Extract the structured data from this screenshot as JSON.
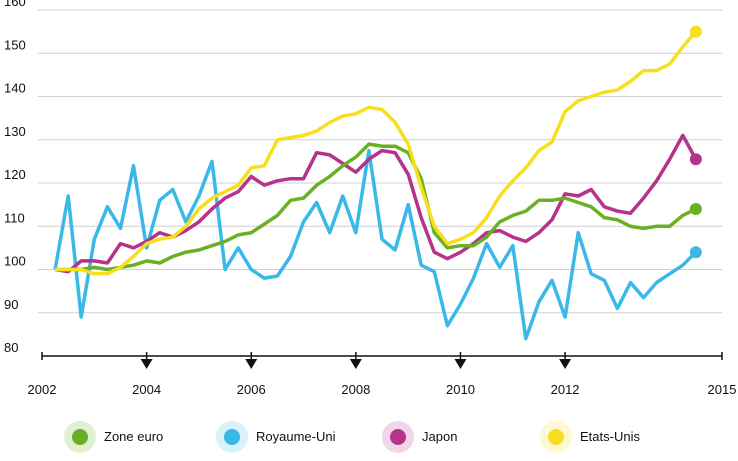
{
  "chart_data": {
    "type": "line",
    "x": [
      2002.25,
      2002.5,
      2002.75,
      2003,
      2003.25,
      2003.5,
      2003.75,
      2004,
      2004.25,
      2004.5,
      2004.75,
      2005,
      2005.25,
      2005.5,
      2005.75,
      2006,
      2006.25,
      2006.5,
      2006.75,
      2007,
      2007.25,
      2007.5,
      2007.75,
      2008,
      2008.25,
      2008.5,
      2008.75,
      2009,
      2009.25,
      2009.5,
      2009.75,
      2010,
      2010.25,
      2010.5,
      2010.75,
      2011,
      2011.25,
      2011.5,
      2011.75,
      2012,
      2012.25,
      2012.5,
      2012.75,
      2013,
      2013.25,
      2013.5,
      2013.75,
      2014,
      2014.25,
      2014.5
    ],
    "series": [
      {
        "name": "Zone euro",
        "color": "#6ab023",
        "values": [
          100,
          100,
          100,
          100.5,
          100,
          100.5,
          101,
          102,
          101.5,
          103,
          104,
          104.5,
          105.5,
          106.5,
          108,
          108.5,
          110.5,
          112.5,
          116,
          116.5,
          119.5,
          121.5,
          124,
          126,
          129,
          128.5,
          128.5,
          127,
          121,
          108.5,
          105,
          105.5,
          105.5,
          107.5,
          111,
          112.5,
          113.5,
          116,
          116,
          116.5,
          115.5,
          114.5,
          112,
          111.5,
          110,
          109.5,
          110,
          110,
          112.5,
          114
        ]
      },
      {
        "name": "Royaume-Uni",
        "color": "#3ab8e8",
        "values": [
          100,
          117,
          89,
          107,
          114.5,
          109.5,
          124,
          105,
          116,
          118.5,
          111,
          117,
          125,
          100,
          105,
          100,
          98,
          98.5,
          103,
          111,
          115.5,
          108.5,
          117,
          108.5,
          127.5,
          107,
          104.5,
          115,
          101,
          99.5,
          87,
          92,
          98,
          106,
          100.5,
          105.5,
          84,
          92.5,
          97.5,
          89,
          108.5,
          99,
          97.5,
          91,
          97,
          93.5,
          97,
          99,
          101,
          104
        ]
      },
      {
        "name": "Japon",
        "color": "#b5338a",
        "values": [
          100,
          99.5,
          102,
          102,
          101.5,
          106,
          105,
          106.5,
          108.5,
          107.5,
          109,
          111,
          114,
          116.5,
          118,
          121.5,
          119.5,
          120.5,
          121,
          121,
          127,
          126.5,
          124.5,
          122.5,
          125.5,
          127.5,
          127,
          122,
          112,
          104,
          102.5,
          104,
          106,
          108.5,
          109,
          107.5,
          106.5,
          108.5,
          111.5,
          117.5,
          117,
          118.5,
          114.5,
          113.5,
          113,
          116.5,
          120.5,
          125.5,
          131,
          125.5
        ]
      },
      {
        "name": "Etats-Unis",
        "color": "#f7df1e",
        "values": [
          100,
          100,
          100,
          99,
          99,
          100.5,
          103,
          106,
          107,
          107.5,
          110,
          114,
          116.5,
          118,
          119.5,
          123.5,
          124,
          130,
          130.5,
          131,
          132,
          134,
          135.5,
          136,
          137.5,
          137,
          134,
          129,
          119,
          110,
          106,
          107,
          108.5,
          112,
          117,
          120.5,
          123.5,
          127.5,
          129.5,
          136.5,
          139,
          140,
          141,
          141.5,
          143.5,
          146,
          146,
          147.5,
          151.5,
          155
        ]
      }
    ],
    "xlim": [
      2002,
      2015
    ],
    "xticks": [
      2002,
      2004,
      2006,
      2008,
      2010,
      2012,
      2015
    ],
    "ylim": [
      80,
      160
    ],
    "yticks": [
      80,
      90,
      100,
      110,
      120,
      130,
      140,
      150,
      160
    ],
    "grid": true,
    "legend": "bottom"
  }
}
